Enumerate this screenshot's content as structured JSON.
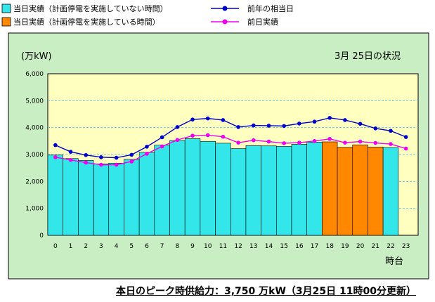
{
  "legend": {
    "items": [
      {
        "label": "当日実績（計画停電を実施していない時間）",
        "kind": "box",
        "color": "#33e6ea"
      },
      {
        "label": "当日実績（計画停電を実施している時間）",
        "kind": "box",
        "color": "#ff8800"
      },
      {
        "label": "前年の相当日",
        "kind": "line",
        "color": "#0000cc"
      },
      {
        "label": "前日実績",
        "kind": "line",
        "color": "#ee00ee"
      }
    ]
  },
  "footer": {
    "text": "本日のピーク時供給力：3,750 万kW（3月25日 11時00分更新）"
  },
  "chart_data": {
    "type": "bar",
    "unit_label": "(万kW)",
    "annotation": "3月 25日の状況",
    "xlabel": "時台",
    "ylim": [
      0,
      6000
    ],
    "yticks": [
      "0",
      "1,000",
      "2,000",
      "3,000",
      "4,000",
      "5,000",
      "6,000"
    ],
    "ytick_values": [
      0,
      1000,
      2000,
      3000,
      4000,
      5000,
      6000
    ],
    "categories": [
      "0",
      "1",
      "2",
      "3",
      "4",
      "5",
      "6",
      "7",
      "8",
      "9",
      "10",
      "11",
      "12",
      "13",
      "14",
      "15",
      "16",
      "17",
      "18",
      "19",
      "20",
      "21",
      "22",
      "23"
    ],
    "grid": true,
    "colors": {
      "plot_bg": "#ffffc0",
      "outer_bg": "#c9eec3",
      "grid": "#66ccdd",
      "bar_normal": "#33e6ea",
      "bar_outage": "#ff8800"
    },
    "series": [
      {
        "kind": "bar",
        "values": [
          2980,
          2850,
          2780,
          2650,
          2680,
          2820,
          3080,
          3350,
          3520,
          3590,
          3490,
          3420,
          3220,
          3330,
          3320,
          3300,
          3380,
          3460,
          3470,
          3270,
          3360,
          3280,
          3260,
          null
        ],
        "outage": [
          false,
          false,
          false,
          false,
          false,
          false,
          false,
          false,
          false,
          false,
          false,
          false,
          false,
          false,
          false,
          false,
          false,
          false,
          true,
          true,
          true,
          true,
          false,
          false
        ]
      },
      {
        "name": "前年の相当日",
        "kind": "line",
        "color": "#0000cc",
        "values": [
          3350,
          3100,
          2980,
          2900,
          2880,
          2990,
          3290,
          3640,
          4020,
          4300,
          4340,
          4280,
          4020,
          4080,
          4070,
          4060,
          4150,
          4220,
          4360,
          4280,
          4140,
          3970,
          3880,
          3650
        ]
      },
      {
        "name": "前日実績",
        "kind": "line",
        "color": "#ee00ee",
        "values": [
          2900,
          2800,
          2700,
          2620,
          2620,
          2740,
          3030,
          3300,
          3540,
          3700,
          3720,
          3660,
          3440,
          3530,
          3480,
          3420,
          3440,
          3500,
          3580,
          3440,
          3480,
          3430,
          3390,
          3220
        ]
      }
    ]
  }
}
